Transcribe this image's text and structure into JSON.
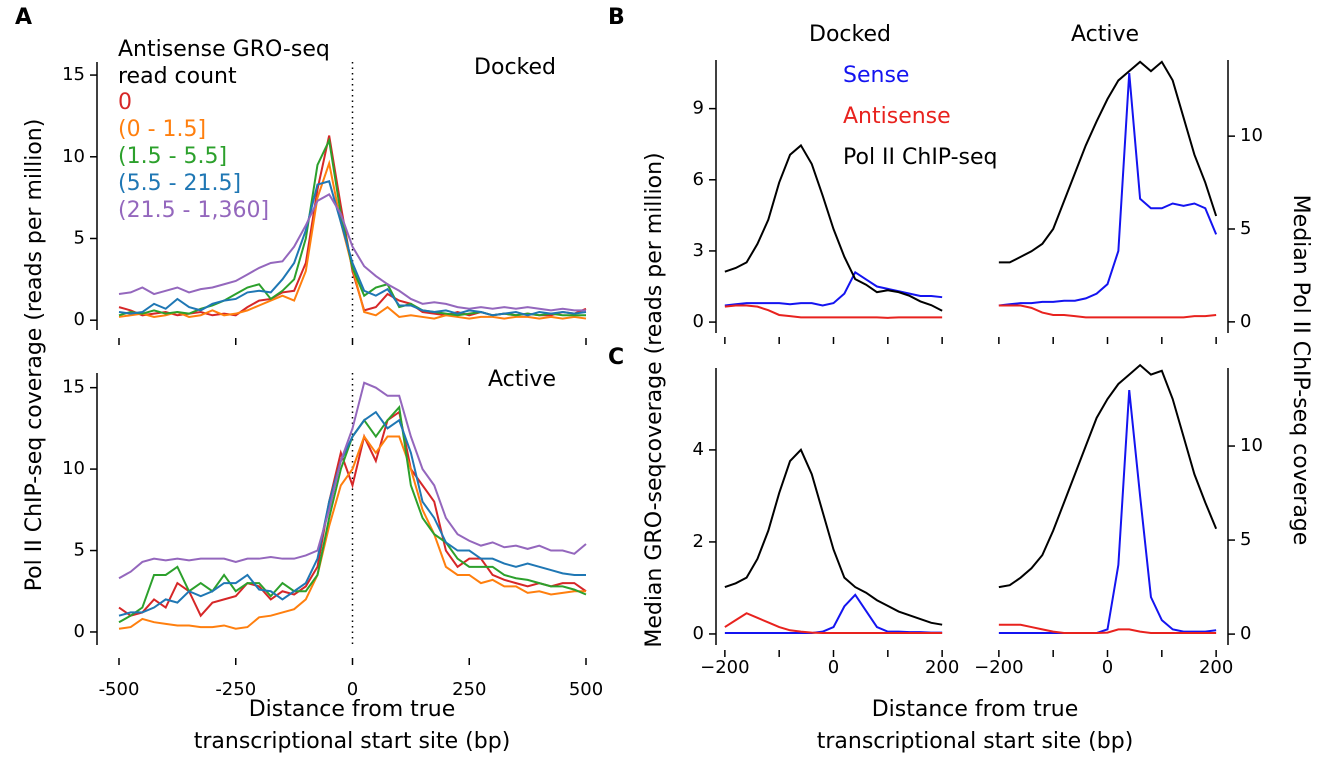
{
  "chart_data": [
    {
      "type": "line",
      "panel": "A",
      "annotation": "Docked",
      "legend": true,
      "legend_title": [
        "Antisense GRO-seq",
        "read count"
      ],
      "ylabel": "Pol II ChIP-seq coverage (reads per million)",
      "xlim": [
        -500,
        500
      ],
      "ylim": [
        -0.6,
        15.8
      ],
      "yticks": [
        0,
        5,
        10,
        15
      ],
      "xticks": [
        -500,
        -250,
        0,
        250,
        500
      ],
      "xtick_labels": false,
      "vline": 0,
      "x": [
        -500,
        -475,
        -450,
        -425,
        -400,
        -375,
        -350,
        -325,
        -300,
        -275,
        -250,
        -225,
        -200,
        -175,
        -150,
        -125,
        -100,
        -75,
        -50,
        -25,
        0,
        25,
        50,
        75,
        100,
        125,
        150,
        175,
        200,
        225,
        250,
        275,
        300,
        325,
        350,
        375,
        400,
        425,
        450,
        475,
        500
      ],
      "series": [
        {
          "name": "0",
          "color": "#d62728",
          "values": [
            0.8,
            0.6,
            0.3,
            0.4,
            0.5,
            0.3,
            0.4,
            0.5,
            0.3,
            0.4,
            0.3,
            0.8,
            1.2,
            1.3,
            1.7,
            1.8,
            3.5,
            8,
            11.3,
            7,
            3,
            0.6,
            0.8,
            1.6,
            1.2,
            1.0,
            0.5,
            0.4,
            0.3,
            0.5,
            0.3,
            0.5,
            0.3,
            0.4,
            0.3,
            0.4,
            0.3,
            0.3,
            0.5,
            0.4,
            0.7
          ]
        },
        {
          "name": "(0 - 1.5]",
          "color": "#ff7f0e",
          "values": [
            0.2,
            0.3,
            0.4,
            0.2,
            0.3,
            0.5,
            0.2,
            0.3,
            0.6,
            0.3,
            0.4,
            0.6,
            0.9,
            1.2,
            1.5,
            1.2,
            3,
            7.5,
            9.6,
            6,
            3.2,
            0.5,
            0.3,
            0.8,
            0.2,
            0.3,
            0.2,
            0.1,
            0.3,
            0.2,
            0.1,
            0.2,
            0.2,
            0.1,
            0.2,
            0.2,
            0.1,
            0.2,
            0.1,
            0.2,
            0.1
          ]
        },
        {
          "name": "(1.5 - 5.5]",
          "color": "#2ca02c",
          "values": [
            0.3,
            0.5,
            0.4,
            0.6,
            0.4,
            0.5,
            0.4,
            0.7,
            0.9,
            1.2,
            1.6,
            2.0,
            2.2,
            1.3,
            1.8,
            2.5,
            5,
            9.5,
            11,
            6.5,
            3.2,
            1.5,
            2,
            2.2,
            0.8,
            1.0,
            0.6,
            0.5,
            0.4,
            0.3,
            0.4,
            0.5,
            0.3,
            0.4,
            0.3,
            0.4,
            0.3,
            0.4,
            0.3,
            0.3,
            0.3
          ]
        },
        {
          "name": "(5.5 - 21.5]",
          "color": "#1f77b4",
          "values": [
            0.5,
            0.4,
            0.5,
            1.0,
            0.7,
            1.3,
            0.8,
            0.6,
            1.0,
            1.2,
            1.3,
            1.7,
            1.8,
            1.7,
            2.5,
            3.5,
            5.5,
            8.3,
            8.5,
            6,
            3.5,
            1.8,
            1.5,
            1.9,
            0.9,
            0.9,
            0.6,
            0.5,
            0.6,
            0.4,
            0.6,
            0.5,
            0.3,
            0.4,
            0.5,
            0.3,
            0.5,
            0.4,
            0.5,
            0.4,
            0.5
          ]
        },
        {
          "name": "(21.5 - 1,360]",
          "color": "#9467bd",
          "values": [
            1.6,
            1.7,
            2.0,
            1.6,
            1.8,
            2.0,
            1.7,
            1.9,
            2.0,
            2.2,
            2.4,
            2.8,
            3.2,
            3.5,
            3.6,
            4.5,
            5.8,
            7.3,
            7.7,
            6.5,
            4.5,
            3.3,
            2.7,
            2.2,
            1.8,
            1.3,
            1.0,
            1.1,
            1.0,
            0.8,
            0.7,
            0.8,
            0.7,
            0.8,
            0.7,
            0.8,
            0.7,
            0.6,
            0.7,
            0.6,
            0.6
          ]
        }
      ]
    },
    {
      "type": "line",
      "annotation": "Active",
      "xlabel": [
        "Distance from true",
        "transcriptional start site (bp)"
      ],
      "xlim": [
        -500,
        500
      ],
      "ylim": [
        -0.8,
        15.9
      ],
      "yticks": [
        0,
        5,
        10,
        15
      ],
      "xticks": [
        -500,
        -250,
        0,
        250,
        500
      ],
      "xtick_labels": true,
      "vline": 0,
      "x": [
        -500,
        -475,
        -450,
        -425,
        -400,
        -375,
        -350,
        -325,
        -300,
        -275,
        -250,
        -225,
        -200,
        -175,
        -150,
        -125,
        -100,
        -75,
        -50,
        -25,
        0,
        25,
        50,
        75,
        100,
        125,
        150,
        175,
        200,
        225,
        250,
        275,
        300,
        325,
        350,
        375,
        400,
        425,
        450,
        475,
        500
      ],
      "series": [
        {
          "color": "#d62728",
          "values": [
            1.5,
            1.0,
            1.2,
            2.0,
            1.5,
            3.0,
            2.5,
            1.0,
            1.8,
            2.0,
            2.2,
            3.0,
            2.8,
            2.0,
            2.5,
            2.3,
            2.8,
            4,
            8,
            11,
            9,
            12,
            10.5,
            13,
            13.5,
            10,
            9,
            8,
            5,
            4,
            4.5,
            4.5,
            3.5,
            3.2,
            3.0,
            2.8,
            3.0,
            2.8,
            3.0,
            3.0,
            2.5
          ]
        },
        {
          "color": "#ff7f0e",
          "values": [
            0.2,
            0.3,
            0.8,
            0.6,
            0.5,
            0.4,
            0.4,
            0.3,
            0.3,
            0.4,
            0.2,
            0.3,
            0.9,
            1.0,
            1.2,
            1.4,
            2.0,
            3.5,
            6.5,
            9,
            10,
            12,
            11,
            12,
            12,
            10,
            7.5,
            6,
            4,
            3.5,
            3.5,
            3.0,
            3.2,
            2.8,
            2.8,
            2.4,
            2.5,
            2.3,
            2.4,
            2.5,
            2.5
          ]
        },
        {
          "color": "#2ca02c",
          "values": [
            0.6,
            1.0,
            1.5,
            3.5,
            3.5,
            4.0,
            2.5,
            3.0,
            2.5,
            3.5,
            2.5,
            3.0,
            3.0,
            2.2,
            3.0,
            2.5,
            2.5,
            3.5,
            7,
            10,
            12,
            13,
            12,
            13,
            13.8,
            9,
            7,
            6,
            5.5,
            4.5,
            4.0,
            4.0,
            4.0,
            3.5,
            3.3,
            3.2,
            3.0,
            2.8,
            2.8,
            2.6,
            2.3
          ]
        },
        {
          "color": "#1f77b4",
          "values": [
            1.0,
            1.2,
            1.2,
            1.5,
            2.0,
            1.8,
            2.5,
            2.2,
            2.5,
            3.0,
            3.0,
            3.5,
            2.6,
            2.5,
            2.0,
            2.5,
            3.0,
            4.5,
            8,
            10.5,
            12,
            13,
            13.5,
            12.5,
            13,
            11,
            8,
            7,
            5.5,
            5,
            5,
            4.5,
            4.5,
            4.2,
            4.0,
            4.2,
            4.0,
            3.8,
            3.6,
            3.5,
            3.5
          ]
        },
        {
          "color": "#9467bd",
          "values": [
            3.3,
            3.7,
            4.3,
            4.5,
            4.4,
            4.5,
            4.4,
            4.5,
            4.5,
            4.5,
            4.3,
            4.5,
            4.5,
            4.6,
            4.5,
            4.5,
            4.7,
            5,
            7.5,
            10.5,
            12.5,
            15.3,
            15,
            14.5,
            14.5,
            12,
            10,
            9,
            7,
            6,
            5.6,
            5.3,
            5.5,
            5.2,
            5.3,
            5.1,
            5.3,
            5.0,
            5.0,
            4.8,
            5.4
          ]
        }
      ]
    },
    {
      "type": "line",
      "panel": "B",
      "title": "Docked",
      "legend": true,
      "ylabel": "Median GRO-seqcoverage (reads per million)",
      "xlim": [
        -220,
        220
      ],
      "ylim": [
        -0.46,
        11.05
      ],
      "y2lim": [
        -0.6,
        14.1
      ],
      "yticks": [
        0,
        3,
        6,
        9
      ],
      "xticks": [
        -200,
        -100,
        0,
        100,
        200
      ],
      "xtick_labels": false,
      "x": [
        -200,
        -180,
        -160,
        -140,
        -120,
        -100,
        -80,
        -60,
        -40,
        -20,
        0,
        20,
        40,
        60,
        80,
        100,
        120,
        140,
        160,
        180,
        200
      ],
      "series": [
        {
          "name": "Sense",
          "color": "#1414f0",
          "values": [
            0.7,
            0.75,
            0.8,
            0.8,
            0.8,
            0.8,
            0.75,
            0.8,
            0.8,
            0.7,
            0.8,
            1.2,
            2.1,
            1.8,
            1.5,
            1.4,
            1.3,
            1.2,
            1.1,
            1.1,
            1.05
          ]
        },
        {
          "name": "Antisense",
          "color": "#e8221e",
          "values": [
            0.65,
            0.7,
            0.7,
            0.65,
            0.5,
            0.3,
            0.25,
            0.2,
            0.2,
            0.2,
            0.2,
            0.2,
            0.2,
            0.2,
            0.2,
            0.18,
            0.2,
            0.2,
            0.2,
            0.2,
            0.2
          ]
        },
        {
          "name": "Pol II ChIP-seq",
          "color": "#000000",
          "axis": "y2",
          "values": [
            2.7,
            2.9,
            3.2,
            4.2,
            5.5,
            7.5,
            9.0,
            9.5,
            8.5,
            6.8,
            5.0,
            3.5,
            2.3,
            2.0,
            1.6,
            1.7,
            1.6,
            1.4,
            1.1,
            0.9,
            0.6
          ]
        }
      ]
    },
    {
      "type": "line",
      "title": "Active",
      "y2label": "Median Pol II ChIP-seq coverage",
      "xlim": [
        -220,
        220
      ],
      "ylim": [
        -0.46,
        11.05
      ],
      "y2lim": [
        -0.6,
        14.1
      ],
      "y2ticks": [
        0,
        5,
        10
      ],
      "xticks": [
        -200,
        -100,
        0,
        100,
        200
      ],
      "xtick_labels": false,
      "x": [
        -200,
        -180,
        -160,
        -140,
        -120,
        -100,
        -80,
        -60,
        -40,
        -20,
        0,
        20,
        40,
        60,
        80,
        100,
        120,
        140,
        160,
        180,
        200
      ],
      "series": [
        {
          "color": "#1414f0",
          "values": [
            0.7,
            0.75,
            0.8,
            0.8,
            0.85,
            0.85,
            0.9,
            0.9,
            1.0,
            1.2,
            1.6,
            3.0,
            10.5,
            5.2,
            4.8,
            4.8,
            5.0,
            4.9,
            5.0,
            4.8,
            3.7
          ]
        },
        {
          "color": "#e8221e",
          "values": [
            0.7,
            0.7,
            0.7,
            0.6,
            0.4,
            0.3,
            0.3,
            0.25,
            0.2,
            0.2,
            0.2,
            0.2,
            0.2,
            0.2,
            0.2,
            0.2,
            0.2,
            0.2,
            0.25,
            0.25,
            0.3
          ]
        },
        {
          "color": "#000000",
          "axis": "y2",
          "values": [
            3.2,
            3.2,
            3.5,
            3.8,
            4.2,
            5.0,
            6.5,
            8.0,
            9.5,
            10.8,
            12.0,
            13.0,
            13.5,
            14.0,
            13.5,
            14.0,
            13.0,
            11.0,
            9.0,
            7.5,
            5.7
          ]
        }
      ]
    },
    {
      "type": "line",
      "panel": "C",
      "xlabel": [
        "Distance from true",
        "transcriptional start site (bp)"
      ],
      "xlim": [
        -220,
        220
      ],
      "ylim": [
        -0.24,
        5.78
      ],
      "y2lim": [
        -0.58,
        14.15
      ],
      "yticks": [
        0,
        2,
        4
      ],
      "xticks": [
        {
          "value": -200,
          "label": "−200"
        },
        0,
        200
      ],
      "xminor": [
        -100,
        100
      ],
      "xtick_labels": true,
      "x": [
        -200,
        -180,
        -160,
        -140,
        -120,
        -100,
        -80,
        -60,
        -40,
        -20,
        0,
        20,
        40,
        60,
        80,
        100,
        120,
        140,
        160,
        180,
        200
      ],
      "series": [
        {
          "color": "#1414f0",
          "values": [
            0.02,
            0.02,
            0.02,
            0.02,
            0.02,
            0.02,
            0.02,
            0.02,
            0.02,
            0.05,
            0.15,
            0.6,
            0.85,
            0.5,
            0.15,
            0.05,
            0.05,
            0.04,
            0.04,
            0.03,
            0.03
          ]
        },
        {
          "color": "#e8221e",
          "values": [
            0.15,
            0.3,
            0.45,
            0.35,
            0.25,
            0.15,
            0.08,
            0.05,
            0.03,
            0.02,
            0.02,
            0.02,
            0.02,
            0.02,
            0.02,
            0.02,
            0.02,
            0.02,
            0.02,
            0.02,
            0.02
          ]
        },
        {
          "color": "#000000",
          "axis": "y2",
          "values": [
            2.5,
            2.7,
            3.0,
            4.0,
            5.5,
            7.5,
            9.2,
            9.8,
            8.5,
            6.5,
            4.5,
            3.0,
            2.5,
            2.2,
            1.8,
            1.5,
            1.2,
            1.0,
            0.8,
            0.6,
            0.5
          ]
        }
      ]
    },
    {
      "type": "line",
      "xlim": [
        -220,
        220
      ],
      "ylim": [
        -0.24,
        5.78
      ],
      "y2lim": [
        -0.58,
        14.15
      ],
      "y2ticks": [
        0,
        5,
        10
      ],
      "xticks": [
        {
          "value": -200,
          "label": "−200"
        },
        0,
        200
      ],
      "xminor": [
        -100,
        100
      ],
      "xtick_labels": true,
      "x": [
        -200,
        -180,
        -160,
        -140,
        -120,
        -100,
        -80,
        -60,
        -40,
        -20,
        0,
        20,
        40,
        60,
        80,
        100,
        120,
        140,
        160,
        180,
        200
      ],
      "series": [
        {
          "color": "#1414f0",
          "values": [
            0.02,
            0.02,
            0.02,
            0.02,
            0.02,
            0.02,
            0.02,
            0.02,
            0.02,
            0.02,
            0.1,
            1.5,
            5.3,
            3.0,
            0.8,
            0.3,
            0.1,
            0.05,
            0.05,
            0.05,
            0.08
          ]
        },
        {
          "color": "#e8221e",
          "values": [
            0.2,
            0.2,
            0.2,
            0.15,
            0.1,
            0.05,
            0.02,
            0.02,
            0.02,
            0.02,
            0.03,
            0.1,
            0.1,
            0.05,
            0.02,
            0.02,
            0.02,
            0.02,
            0.02,
            0.02,
            0.02
          ]
        },
        {
          "color": "#000000",
          "axis": "y2",
          "values": [
            2.5,
            2.6,
            3.0,
            3.5,
            4.2,
            5.5,
            7.0,
            8.5,
            10.0,
            11.5,
            12.5,
            13.3,
            13.8,
            14.3,
            13.8,
            14.0,
            12.5,
            10.5,
            8.5,
            7.0,
            5.6
          ]
        }
      ]
    }
  ]
}
